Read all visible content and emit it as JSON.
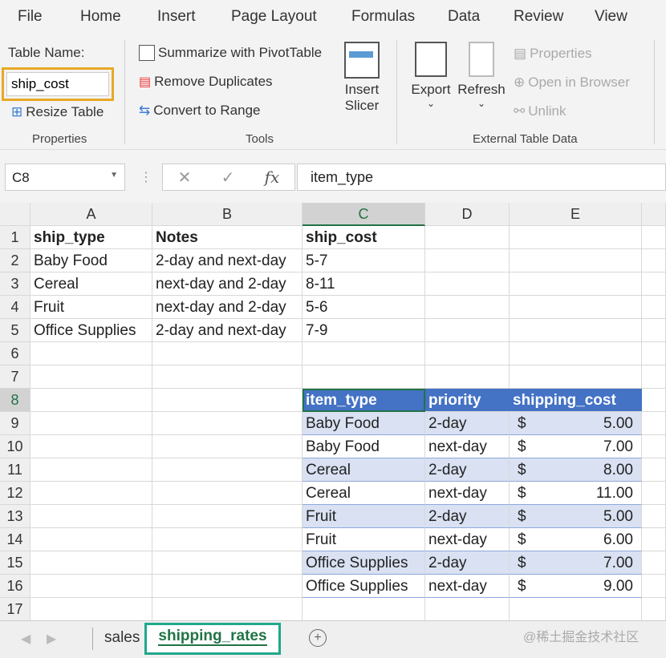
{
  "menu": [
    "File",
    "Home",
    "Insert",
    "Page Layout",
    "Formulas",
    "Data",
    "Review",
    "View"
  ],
  "ribbon": {
    "table_name_label": "Table Name:",
    "table_name_value": "ship_cost",
    "resize": "Resize Table",
    "properties_group": "Properties",
    "summarize": "Summarize with PivotTable",
    "remove_dup": "Remove Duplicates",
    "convert": "Convert to Range",
    "insert_slicer_1": "Insert",
    "insert_slicer_2": "Slicer",
    "tools_group": "Tools",
    "export": "Export",
    "refresh": "Refresh",
    "properties": "Properties",
    "open_browser": "Open in Browser",
    "unlink": "Unlink",
    "external_group": "External Table Data"
  },
  "formula_bar": {
    "name_box": "C8",
    "fx": "fx",
    "value": "item_type"
  },
  "columns": [
    "A",
    "B",
    "C",
    "D",
    "E"
  ],
  "rows": [
    [
      "ship_type",
      "Notes",
      "ship_cost",
      "",
      ""
    ],
    [
      "Baby Food",
      "2-day and next-day",
      "5-7",
      "",
      ""
    ],
    [
      "Cereal",
      "next-day and 2-day",
      "  8-11",
      "",
      ""
    ],
    [
      "Fruit",
      "next-day and 2-day",
      "5-6",
      "",
      ""
    ],
    [
      "Office Supplies",
      "2-day and next-day",
      "  7-9",
      "",
      ""
    ],
    [
      "",
      "",
      "",
      "",
      ""
    ],
    [
      "",
      "",
      "",
      "",
      ""
    ],
    [
      "",
      "",
      "item_type",
      "priority",
      "shipping_cost"
    ],
    [
      "",
      "",
      "Baby Food",
      "2-day",
      "5.00"
    ],
    [
      "",
      "",
      "Baby Food",
      "next-day",
      "7.00"
    ],
    [
      "",
      "",
      "Cereal",
      "2-day",
      "8.00"
    ],
    [
      "",
      "",
      "Cereal",
      "next-day",
      "11.00"
    ],
    [
      "",
      "",
      "Fruit",
      "2-day",
      "5.00"
    ],
    [
      "",
      "",
      "Fruit",
      "next-day",
      "6.00"
    ],
    [
      "",
      "",
      "Office Supplies",
      "2-day",
      "7.00"
    ],
    [
      "",
      "",
      "Office Supplies",
      "next-day",
      "9.00"
    ],
    [
      "",
      "",
      "",
      "",
      ""
    ]
  ],
  "currency": "$",
  "colors": {
    "table_header": "#4472C4",
    "band": "#D9E1F2",
    "accent": "#217346"
  },
  "sheets": [
    "sales",
    "shipping_rates"
  ],
  "watermark": "@稀土掘金技术社区"
}
